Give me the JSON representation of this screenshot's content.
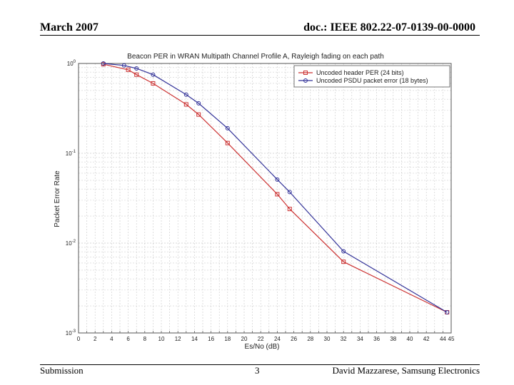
{
  "header": {
    "left": "March 2007",
    "right": "doc.: IEEE 802.22-07-0139-00-0000"
  },
  "footer": {
    "left": "Submission",
    "center": "3",
    "right": "David Mazzarese, Samsung Electronics"
  },
  "chart_data": {
    "type": "line",
    "title": "Beacon PER in WRAN Multipath Channel Profile A, Rayleigh fading on each path",
    "xlabel": "Es/No (dB)",
    "ylabel": "Packet Error Rate",
    "xlim": [
      0,
      45
    ],
    "ylim": [
      0.001,
      1
    ],
    "yscale": "log",
    "grid": true,
    "legend": "top-right",
    "xticks": [
      0,
      1,
      2,
      3,
      4,
      5,
      6,
      7,
      8,
      9,
      10,
      11,
      12,
      13,
      14,
      15,
      16,
      17,
      18,
      19,
      20,
      21,
      22,
      23,
      24,
      25,
      26,
      27,
      28,
      29,
      30,
      31,
      32,
      33,
      34,
      35,
      36,
      37,
      38,
      39,
      40,
      41,
      42,
      43,
      44,
      45
    ],
    "xtick_labels": [
      "0",
      "",
      "2",
      "",
      "4",
      "",
      "6",
      "",
      "8",
      "",
      "10",
      "",
      "12",
      "",
      "14",
      "",
      "16",
      "",
      "18",
      "",
      "20",
      "",
      "22",
      "",
      "24",
      "",
      "26",
      "",
      "28",
      "",
      "30",
      "",
      "32",
      "",
      "34",
      "",
      "36",
      "",
      "38",
      "",
      "40",
      "",
      "42",
      "",
      "44",
      "45"
    ],
    "yticks": [
      {
        "value": 1,
        "base": "10",
        "exp": "0"
      },
      {
        "value": 0.1,
        "base": "10",
        "exp": "-1"
      },
      {
        "value": 0.01,
        "base": "10",
        "exp": "-2"
      },
      {
        "value": 0.001,
        "base": "10",
        "exp": "-3"
      }
    ],
    "series": [
      {
        "name": "Uncoded header PER (24 bits)",
        "color": "#cc3333",
        "marker": "square",
        "x": [
          3,
          6,
          7,
          9,
          13,
          14.5,
          18,
          24,
          25.5,
          32,
          44.5
        ],
        "y": [
          0.98,
          0.85,
          0.75,
          0.6,
          0.35,
          0.27,
          0.13,
          0.035,
          0.024,
          0.0062,
          0.0017
        ]
      },
      {
        "name": "Uncoded PSDU packet error (18 bytes)",
        "color": "#333399",
        "marker": "circle",
        "x": [
          3,
          5.5,
          7,
          9,
          13,
          14.5,
          18,
          24,
          25.5,
          32,
          44.5
        ],
        "y": [
          1.0,
          0.95,
          0.88,
          0.75,
          0.45,
          0.36,
          0.19,
          0.051,
          0.037,
          0.0081,
          0.0017
        ]
      }
    ]
  }
}
